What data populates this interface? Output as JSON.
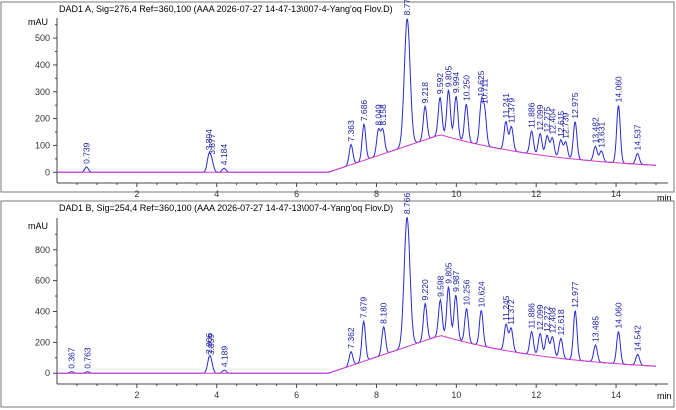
{
  "colors": {
    "signal": "#2a2ad6",
    "baseline": "#d43ad4",
    "frame": "#7a7a7a",
    "title": "#1a1aa8",
    "label": "#1a1aa8",
    "axis_text": "#333333"
  },
  "chart_data": [
    {
      "type": "line",
      "title": "DAD1 A, Sig=276,4 Ref=360,100 (AAA 2026-07-27 14-47-13\\007-4-Yang'oq Flov.D)",
      "ylabel": "mAU",
      "xlabel": "min",
      "xlim": [
        0,
        15
      ],
      "ylim": [
        -40,
        560
      ],
      "x_ticks": [
        2,
        4,
        6,
        8,
        10,
        12,
        14
      ],
      "y_ticks": [
        0,
        100,
        200,
        300,
        400,
        500
      ],
      "peaks": [
        {
          "rt": 0.739,
          "label": "0.739",
          "height": 20
        },
        {
          "rt": 3.804,
          "label": "3.804",
          "height": 60
        },
        {
          "rt": 3.877,
          "label": "3.877",
          "height": 38
        },
        {
          "rt": 4.184,
          "label": "4.184",
          "height": 15
        },
        {
          "rt": 7.363,
          "label": "7.363",
          "height": 75
        },
        {
          "rt": 7.686,
          "label": "7.686",
          "height": 135
        },
        {
          "rt": 8.049,
          "label": "8.049",
          "height": 95
        },
        {
          "rt": 8.158,
          "label": "8.158",
          "height": 90
        },
        {
          "rt": 8.77,
          "label": "8.770",
          "height": 475
        },
        {
          "rt": 9.218,
          "label": "9.218",
          "height": 125
        },
        {
          "rt": 9.592,
          "label": "9.592",
          "height": 140
        },
        {
          "rt": 9.805,
          "label": "9.805",
          "height": 175
        },
        {
          "rt": 9.994,
          "label": "9.994",
          "height": 160
        },
        {
          "rt": 10.25,
          "label": "10.250",
          "height": 140
        },
        {
          "rt": 10.625,
          "label": "10.625",
          "height": 150
        },
        {
          "rt": 10.711,
          "label": "10.711",
          "height": 120
        },
        {
          "rt": 11.241,
          "label": "11.241",
          "height": 105
        },
        {
          "rt": 11.379,
          "label": "11.379",
          "height": 90
        },
        {
          "rt": 11.886,
          "label": "11.886",
          "height": 85
        },
        {
          "rt": 12.099,
          "label": "12.099",
          "height": 80
        },
        {
          "rt": 12.275,
          "label": "12.275",
          "height": 75
        },
        {
          "rt": 12.404,
          "label": "12.404",
          "height": 70
        },
        {
          "rt": 12.615,
          "label": "12.615",
          "height": 65
        },
        {
          "rt": 12.739,
          "label": "12.739",
          "height": 60
        },
        {
          "rt": 12.975,
          "label": "12.975",
          "height": 140
        },
        {
          "rt": 13.482,
          "label": "13.482",
          "height": 55
        },
        {
          "rt": 13.631,
          "label": "13.631",
          "height": 40
        },
        {
          "rt": 14.06,
          "label": "14.060",
          "height": 215
        },
        {
          "rt": 14.537,
          "label": "14.537",
          "height": 40
        }
      ]
    },
    {
      "type": "line",
      "title": "DAD1 B, Sig=254,4 Ref=360,100 (AAA 2026-07-27 14-47-13\\007-4-Yang'oq Flov.D)",
      "ylabel": "mAU",
      "xlabel": "min",
      "xlim": [
        0,
        15
      ],
      "ylim": [
        -70,
        980
      ],
      "x_ticks": [
        2,
        4,
        6,
        8,
        10,
        12,
        14
      ],
      "y_ticks": [
        0,
        200,
        400,
        600,
        800
      ],
      "peaks": [
        {
          "rt": 0.367,
          "label": "0.367",
          "height": 10
        },
        {
          "rt": 0.763,
          "label": "0.763",
          "height": 10
        },
        {
          "rt": 3.806,
          "label": "3.806",
          "height": 75
        },
        {
          "rt": 3.859,
          "label": "3.859",
          "height": 60
        },
        {
          "rt": 4.189,
          "label": "4.189",
          "height": 20
        },
        {
          "rt": 7.362,
          "label": "7.362",
          "height": 90
        },
        {
          "rt": 7.679,
          "label": "7.679",
          "height": 260
        },
        {
          "rt": 8.18,
          "label": "8.180",
          "height": 180
        },
        {
          "rt": 8.766,
          "label": "8.766",
          "height": 840
        },
        {
          "rt": 9.22,
          "label": "9.220",
          "height": 240
        },
        {
          "rt": 9.598,
          "label": "9.598",
          "height": 230
        },
        {
          "rt": 9.805,
          "label": "9.805",
          "height": 330
        },
        {
          "rt": 9.987,
          "label": "9.987",
          "height": 290
        },
        {
          "rt": 10.256,
          "label": "10.256",
          "height": 220
        },
        {
          "rt": 10.624,
          "label": "10.624",
          "height": 230
        },
        {
          "rt": 11.245,
          "label": "11.245",
          "height": 170
        },
        {
          "rt": 11.372,
          "label": "11.372",
          "height": 150
        },
        {
          "rt": 11.886,
          "label": "11.886",
          "height": 150
        },
        {
          "rt": 12.099,
          "label": "12.099",
          "height": 145
        },
        {
          "rt": 12.272,
          "label": "12.272",
          "height": 140
        },
        {
          "rt": 12.408,
          "label": "12.408",
          "height": 135
        },
        {
          "rt": 12.618,
          "label": "12.618",
          "height": 130
        },
        {
          "rt": 12.977,
          "label": "12.977",
          "height": 320
        },
        {
          "rt": 13.485,
          "label": "13.485",
          "height": 110
        },
        {
          "rt": 14.06,
          "label": "14.060",
          "height": 210
        },
        {
          "rt": 14.542,
          "label": "14.542",
          "height": 70
        }
      ]
    }
  ]
}
